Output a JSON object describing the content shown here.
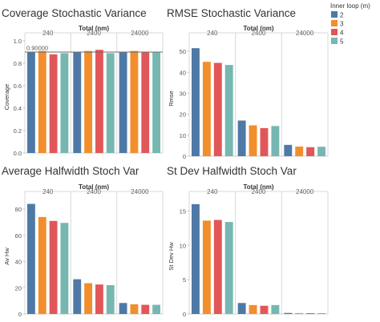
{
  "header_label": "Total (nm)",
  "legend": {
    "title": "Inner loop (m)",
    "items": [
      {
        "label": "2",
        "color": "#4e79a7"
      },
      {
        "label": "3",
        "color": "#f28e2b"
      },
      {
        "label": "4",
        "color": "#e15759"
      },
      {
        "label": "5",
        "color": "#76b7b2"
      }
    ]
  },
  "chart_data": [
    {
      "type": "bar",
      "title": "Coverage Stochastic Variance",
      "xlabel": "Total (nm)",
      "ylabel": "Coverage",
      "categories": [
        "240",
        "2400",
        "24000"
      ],
      "series": [
        {
          "name": "2",
          "values": [
            0.9,
            0.9,
            0.9
          ]
        },
        {
          "name": "3",
          "values": [
            0.91,
            0.91,
            0.91
          ]
        },
        {
          "name": "4",
          "values": [
            0.88,
            0.92,
            0.9
          ]
        },
        {
          "name": "5",
          "values": [
            0.89,
            0.89,
            0.9
          ]
        }
      ],
      "ylim": [
        0,
        1.0
      ],
      "yticks": [
        "0.0",
        "0.2",
        "0.4",
        "0.6",
        "0.8",
        "1.0"
      ],
      "reference_line": {
        "value": 0.9,
        "label": "0.90000"
      }
    },
    {
      "type": "bar",
      "title": "RMSE Stochastic Variance",
      "xlabel": "Total (nm)",
      "ylabel": "Rmse",
      "categories": [
        "240",
        "2400",
        "24000"
      ],
      "series": [
        {
          "name": "2",
          "values": [
            51.5,
            17.0,
            5.4
          ]
        },
        {
          "name": "3",
          "values": [
            45.0,
            14.7,
            4.6
          ]
        },
        {
          "name": "4",
          "values": [
            44.5,
            13.4,
            4.3
          ]
        },
        {
          "name": "5",
          "values": [
            43.5,
            14.4,
            4.5
          ]
        }
      ],
      "ylim": [
        0,
        55
      ],
      "yticks": [
        "0",
        "10",
        "20",
        "30",
        "40",
        "50"
      ]
    },
    {
      "type": "bar",
      "title": "Average Halfwidth Stoch Var",
      "xlabel": "Total (nm)",
      "ylabel": "Av Hw",
      "categories": [
        "240",
        "2400",
        "24000"
      ],
      "series": [
        {
          "name": "2",
          "values": [
            84.0,
            26.5,
            8.4
          ]
        },
        {
          "name": "3",
          "values": [
            74.0,
            23.5,
            7.4
          ]
        },
        {
          "name": "4",
          "values": [
            71.0,
            22.5,
            7.0
          ]
        },
        {
          "name": "5",
          "values": [
            69.5,
            22.0,
            7.0
          ]
        }
      ],
      "ylim": [
        0,
        88
      ],
      "yticks": [
        "0",
        "20",
        "40",
        "60",
        "80"
      ]
    },
    {
      "type": "bar",
      "title": "St Dev Halfwidth Stoch Var",
      "xlabel": "Total (nm)",
      "ylabel": "St Dev Hw",
      "categories": [
        "240",
        "2400",
        "24000"
      ],
      "series": [
        {
          "name": "2",
          "values": [
            16.0,
            1.6,
            0.15
          ]
        },
        {
          "name": "3",
          "values": [
            13.6,
            1.3,
            0.13
          ]
        },
        {
          "name": "4",
          "values": [
            13.7,
            1.2,
            0.12
          ]
        },
        {
          "name": "5",
          "values": [
            13.4,
            1.3,
            0.12
          ]
        }
      ],
      "ylim": [
        0,
        16.8
      ],
      "yticks": [
        "0",
        "5",
        "10",
        "15"
      ]
    }
  ]
}
